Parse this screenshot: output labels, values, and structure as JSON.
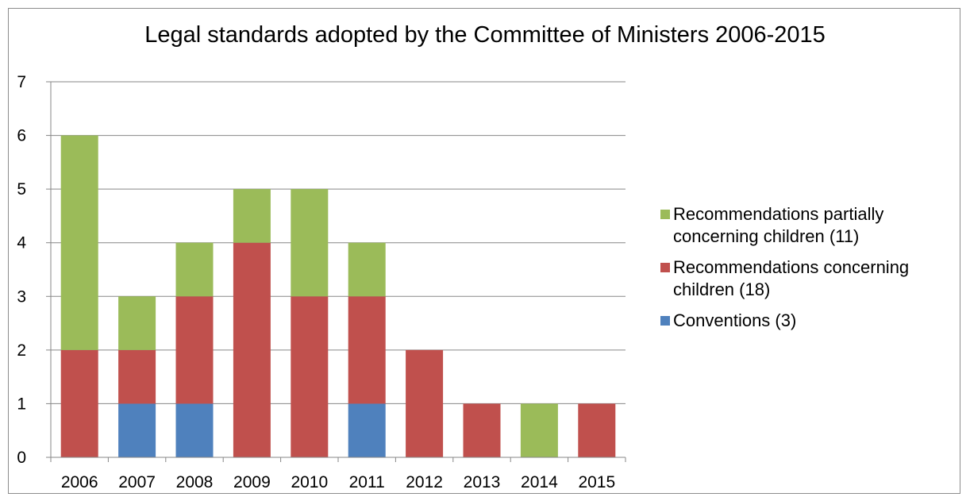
{
  "chart_data": {
    "type": "bar",
    "stacked": true,
    "title": "Legal standards adopted by the Committee of Ministers 2006-2015",
    "xlabel": "",
    "ylabel": "",
    "categories": [
      "2006",
      "2007",
      "2008",
      "2009",
      "2010",
      "2011",
      "2012",
      "2013",
      "2014",
      "2015"
    ],
    "ylim": [
      0,
      7
    ],
    "yticks": [
      "0",
      "1",
      "2",
      "3",
      "4",
      "5",
      "6",
      "7"
    ],
    "grid": true,
    "legend_position": "right",
    "series": [
      {
        "name": "Conventions (3)",
        "color": "#4f81bd",
        "values": [
          0,
          1,
          1,
          0,
          0,
          1,
          0,
          0,
          0,
          0
        ]
      },
      {
        "name": "Recommendations concerning children (18)",
        "color": "#c0504d",
        "values": [
          2,
          1,
          2,
          4,
          3,
          2,
          2,
          1,
          0,
          1
        ]
      },
      {
        "name": "Recommendations partially concerning children (11)",
        "color": "#9bbb59",
        "values": [
          4,
          1,
          1,
          1,
          2,
          1,
          0,
          0,
          1,
          0
        ]
      }
    ]
  }
}
